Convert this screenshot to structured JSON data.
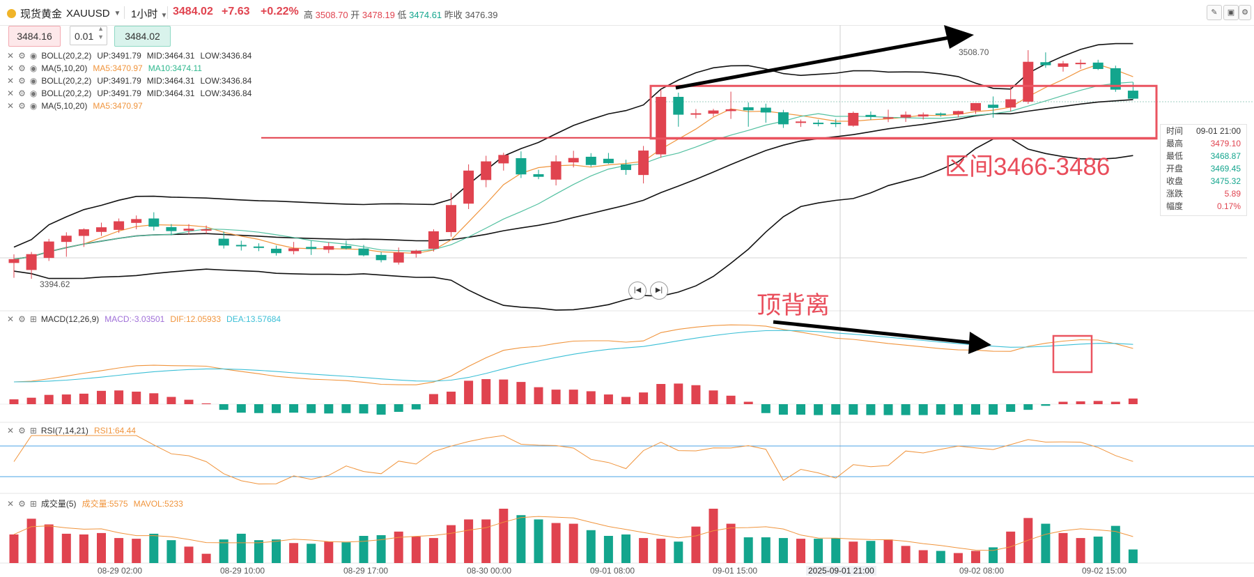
{
  "header": {
    "name": "现货黄金",
    "symbol": "XAUUSD",
    "timeframe": "1小时",
    "price": "3484.02",
    "change": "+7.63",
    "change_pct": "+0.22%",
    "high_label": "高",
    "high": "3508.70",
    "open_label": "开",
    "open": "3478.19",
    "low_label": "低",
    "low": "3474.61",
    "prev_label": "昨收",
    "prev": "3476.39"
  },
  "order": {
    "sell": "3484.16",
    "qty": "0.01",
    "buy": "3484.02"
  },
  "legends": {
    "boll1": {
      "name": "BOLL(20,2,2)",
      "up": "UP:3491.79",
      "mid": "MID:3464.31",
      "low": "LOW:3436.84"
    },
    "ma1": {
      "name": "MA(5,10,20)",
      "ma5": "MA5:3470.97",
      "ma10": "MA10:3474.11"
    },
    "boll2": {
      "name": "BOLL(20,2,2)",
      "up": "UP:3491.79",
      "mid": "MID:3464.31",
      "low": "LOW:3436.84"
    },
    "boll3": {
      "name": "BOLL(20,2,2)",
      "up": "UP:3491.79",
      "mid": "MID:3464.31",
      "low": "LOW:3436.84"
    },
    "ma2": {
      "name": "MA(5,10,20)",
      "ma5": "MA5:3470.97"
    },
    "macd": {
      "name": "MACD(12,26,9)",
      "macd": "MACD:-3.03501",
      "dif": "DIF:12.05933",
      "dea": "DEA:13.57684"
    },
    "rsi": {
      "name": "RSI(7,14,21)",
      "rsi1": "RSI1:64.44"
    },
    "vol": {
      "name": "成交量(5)",
      "vol": "成交量:5575",
      "mavol": "MAVOL:5233"
    }
  },
  "annotations": {
    "range": "区间3466-3486",
    "divergence": "顶背离",
    "high_mark": "3508.70",
    "low_mark": "3394.62"
  },
  "tooltip": [
    {
      "k": "时间",
      "v": "09-01 21:00",
      "c": "#333333"
    },
    {
      "k": "最高",
      "v": "3479.10",
      "c": "#e0434f"
    },
    {
      "k": "最低",
      "v": "3468.87",
      "c": "#13a58d"
    },
    {
      "k": "开盘",
      "v": "3469.45",
      "c": "#13a58d"
    },
    {
      "k": "收盘",
      "v": "3475.32",
      "c": "#13a58d"
    },
    {
      "k": "涨跌",
      "v": "5.89",
      "c": "#e0434f"
    },
    {
      "k": "幅度",
      "v": "0.17%",
      "c": "#e0434f"
    }
  ],
  "x_labels": [
    {
      "text": "08-29 02:00",
      "hl": false
    },
    {
      "text": "08-29 10:00",
      "hl": false
    },
    {
      "text": "08-29 17:00",
      "hl": false
    },
    {
      "text": "08-30 00:00",
      "hl": false
    },
    {
      "text": "09-01 08:00",
      "hl": false
    },
    {
      "text": "09-01 15:00",
      "hl": false
    },
    {
      "text": "2025-09-01 21:00",
      "hl": true
    },
    {
      "text": "09-02 08:00",
      "hl": false
    },
    {
      "text": "09-02 15:00",
      "hl": false
    }
  ],
  "colors": {
    "up": "#e0434f",
    "down": "#13a58d",
    "ma5": "#f0943c",
    "ma10": "#52c0a0",
    "dif": "#f0943c",
    "dea": "#3bbfd6",
    "accent": "#e94d5b"
  },
  "chart_data": {
    "type": "candlestick",
    "title": "现货黄金 XAUUSD 1小时",
    "candles": [
      {
        "o": 3402.5,
        "h": 3406.8,
        "l": 3395.1,
        "c": 3404.4
      },
      {
        "o": 3399.0,
        "h": 3408.0,
        "l": 3394.6,
        "c": 3406.9
      },
      {
        "o": 3405.0,
        "h": 3414.5,
        "l": 3403.5,
        "c": 3413.2
      },
      {
        "o": 3413.0,
        "h": 3417.8,
        "l": 3405.6,
        "c": 3416.1
      },
      {
        "o": 3416.0,
        "h": 3419.8,
        "l": 3410.5,
        "c": 3419.3
      },
      {
        "o": 3418.0,
        "h": 3422.6,
        "l": 3416.0,
        "c": 3420.3
      },
      {
        "o": 3419.0,
        "h": 3424.7,
        "l": 3417.5,
        "c": 3423.3
      },
      {
        "o": 3422.5,
        "h": 3426.2,
        "l": 3419.3,
        "c": 3424.4
      },
      {
        "o": 3424.7,
        "h": 3427.8,
        "l": 3418.7,
        "c": 3420.6
      },
      {
        "o": 3420.4,
        "h": 3421.9,
        "l": 3416.3,
        "c": 3418.4
      },
      {
        "o": 3418.6,
        "h": 3421.9,
        "l": 3416.8,
        "c": 3419.6
      },
      {
        "o": 3419.1,
        "h": 3421.2,
        "l": 3417.0,
        "c": 3419.3
      },
      {
        "o": 3414.6,
        "h": 3418.2,
        "l": 3409.7,
        "c": 3411.2
      },
      {
        "o": 3411.5,
        "h": 3413.6,
        "l": 3408.7,
        "c": 3410.9
      },
      {
        "o": 3410.7,
        "h": 3412.3,
        "l": 3408.4,
        "c": 3410.4
      },
      {
        "o": 3409.6,
        "h": 3411.2,
        "l": 3406.2,
        "c": 3407.4
      },
      {
        "o": 3408.4,
        "h": 3413.0,
        "l": 3406.8,
        "c": 3409.8
      },
      {
        "o": 3410.5,
        "h": 3413.6,
        "l": 3406.5,
        "c": 3409.5
      },
      {
        "o": 3409.1,
        "h": 3412.8,
        "l": 3407.4,
        "c": 3410.9
      },
      {
        "o": 3411.0,
        "h": 3413.6,
        "l": 3409.2,
        "c": 3409.7
      },
      {
        "o": 3409.7,
        "h": 3411.5,
        "l": 3405.8,
        "c": 3406.3
      },
      {
        "o": 3406.5,
        "h": 3408.0,
        "l": 3402.8,
        "c": 3403.9
      },
      {
        "o": 3402.7,
        "h": 3410.2,
        "l": 3401.7,
        "c": 3407.7
      },
      {
        "o": 3407.1,
        "h": 3409.1,
        "l": 3405.2,
        "c": 3408.6
      },
      {
        "o": 3409.6,
        "h": 3419.3,
        "l": 3408.2,
        "c": 3418.3
      },
      {
        "o": 3417.9,
        "h": 3437.5,
        "l": 3415.6,
        "c": 3431.4
      },
      {
        "o": 3432.1,
        "h": 3451.7,
        "l": 3429.4,
        "c": 3448.6
      },
      {
        "o": 3443.9,
        "h": 3456.0,
        "l": 3440.3,
        "c": 3453.2
      },
      {
        "o": 3452.2,
        "h": 3457.5,
        "l": 3448.6,
        "c": 3456.4
      },
      {
        "o": 3454.8,
        "h": 3458.2,
        "l": 3444.9,
        "c": 3446.7
      },
      {
        "o": 3446.8,
        "h": 3449.0,
        "l": 3444.3,
        "c": 3445.5
      },
      {
        "o": 3444.1,
        "h": 3456.2,
        "l": 3441.2,
        "c": 3453.2
      },
      {
        "o": 3452.7,
        "h": 3458.5,
        "l": 3450.2,
        "c": 3454.9
      },
      {
        "o": 3455.5,
        "h": 3457.3,
        "l": 3450.5,
        "c": 3451.4
      },
      {
        "o": 3454.5,
        "h": 3457.4,
        "l": 3451.9,
        "c": 3452.3
      },
      {
        "o": 3451.7,
        "h": 3454.0,
        "l": 3446.5,
        "c": 3448.9
      },
      {
        "o": 3446.4,
        "h": 3460.9,
        "l": 3442.2,
        "c": 3458.6
      },
      {
        "o": 3456.7,
        "h": 3489.0,
        "l": 3455.0,
        "c": 3485.4
      },
      {
        "o": 3485.4,
        "h": 3487.5,
        "l": 3470.5,
        "c": 3476.5
      },
      {
        "o": 3476.7,
        "h": 3479.3,
        "l": 3474.7,
        "c": 3477.2
      },
      {
        "o": 3477.0,
        "h": 3479.4,
        "l": 3475.6,
        "c": 3478.6
      },
      {
        "o": 3478.3,
        "h": 3488.0,
        "l": 3474.4,
        "c": 3479.2
      },
      {
        "o": 3480.2,
        "h": 3482.6,
        "l": 3470.5,
        "c": 3478.7
      },
      {
        "o": 3480.0,
        "h": 3482.0,
        "l": 3472.5,
        "c": 3477.6
      },
      {
        "o": 3477.7,
        "h": 3478.9,
        "l": 3469.9,
        "c": 3471.7
      },
      {
        "o": 3472.4,
        "h": 3474.1,
        "l": 3470.4,
        "c": 3473.1
      },
      {
        "o": 3472.5,
        "h": 3474.0,
        "l": 3470.7,
        "c": 3472.1
      },
      {
        "o": 3472.5,
        "h": 3474.4,
        "l": 3470.3,
        "c": 3471.8
      },
      {
        "o": 3471.0,
        "h": 3478.1,
        "l": 3470.5,
        "c": 3477.4
      },
      {
        "o": 3476.4,
        "h": 3478.1,
        "l": 3473.9,
        "c": 3475.4
      },
      {
        "o": 3475.2,
        "h": 3479.0,
        "l": 3472.8,
        "c": 3475.2
      },
      {
        "o": 3475.1,
        "h": 3478.1,
        "l": 3472.9,
        "c": 3476.5
      },
      {
        "o": 3475.6,
        "h": 3477.6,
        "l": 3474.1,
        "c": 3476.6
      },
      {
        "o": 3477.1,
        "h": 3477.6,
        "l": 3475.5,
        "c": 3476.6
      },
      {
        "o": 3476.7,
        "h": 3478.5,
        "l": 3475.2,
        "c": 3478.3
      },
      {
        "o": 3478.5,
        "h": 3482.3,
        "l": 3476.9,
        "c": 3482.3
      },
      {
        "o": 3481.5,
        "h": 3485.6,
        "l": 3475.0,
        "c": 3479.9
      },
      {
        "o": 3480.1,
        "h": 3490.6,
        "l": 3478.2,
        "c": 3484.2
      },
      {
        "o": 3483.0,
        "h": 3508.7,
        "l": 3481.9,
        "c": 3502.9
      },
      {
        "o": 3502.7,
        "h": 3507.6,
        "l": 3499.9,
        "c": 3501.2
      },
      {
        "o": 3500.4,
        "h": 3503.3,
        "l": 3498.0,
        "c": 3502.1
      },
      {
        "o": 3501.7,
        "h": 3504.0,
        "l": 3499.4,
        "c": 3502.4
      },
      {
        "o": 3502.5,
        "h": 3503.9,
        "l": 3498.8,
        "c": 3499.3
      },
      {
        "o": 3499.7,
        "h": 3501.0,
        "l": 3487.9,
        "c": 3489.0
      },
      {
        "o": 3488.5,
        "h": 3492.7,
        "l": 3484.2,
        "c": 3484.5
      }
    ],
    "macd_hist": [
      -1.2,
      -1.6,
      -2.3,
      -2.4,
      -2.6,
      -3.3,
      -3.4,
      -3.1,
      -2.7,
      -1.8,
      -1.1,
      -0.2,
      1.4,
      2.1,
      2.2,
      2.2,
      2.1,
      2.2,
      2.3,
      2.2,
      2.3,
      2.6,
      1.9,
      1.3,
      -2.5,
      -3.1,
      -5.8,
      -6.2,
      -6.1,
      -5.5,
      -4.2,
      -3.6,
      -3.6,
      -3.2,
      -2.4,
      -1.8,
      -2.9,
      -5.0,
      -5.1,
      -4.7,
      -3.4,
      -2.1,
      -0.6,
      2.2,
      2.6,
      2.6,
      2.7,
      2.6,
      2.6,
      2.7,
      2.7,
      2.7,
      2.7,
      2.6,
      2.7,
      2.6,
      2.6,
      1.9,
      1.4,
      0.4,
      -0.6,
      -0.7,
      -0.8,
      -0.6,
      -1.4
    ],
    "macd_hist_axis": "positive=green bar (below baseline), negative=red bar (above baseline) as rendered",
    "vol": [
      4000,
      6200,
      5400,
      4100,
      4000,
      4200,
      3500,
      3400,
      4100,
      3200,
      2300,
      1300,
      3300,
      4100,
      3200,
      3300,
      2800,
      2700,
      3000,
      2900,
      3800,
      3900,
      4400,
      3700,
      3500,
      5300,
      6100,
      6100,
      7600,
      6700,
      6100,
      5600,
      5500,
      4600,
      3800,
      4000,
      3500,
      3400,
      3000,
      5100,
      7600,
      5500,
      3600,
      3600,
      3500,
      3400,
      3400,
      3500,
      3000,
      3100,
      3300,
      2400,
      1800,
      1700,
      1400,
      1700,
      2200,
      4400,
      6300,
      5500,
      4200,
      3500,
      3700,
      5200,
      1900
    ],
    "rsi_band": [
      30,
      70
    ],
    "resistance_line": 3466,
    "range_box": [
      3466,
      3486
    ]
  }
}
